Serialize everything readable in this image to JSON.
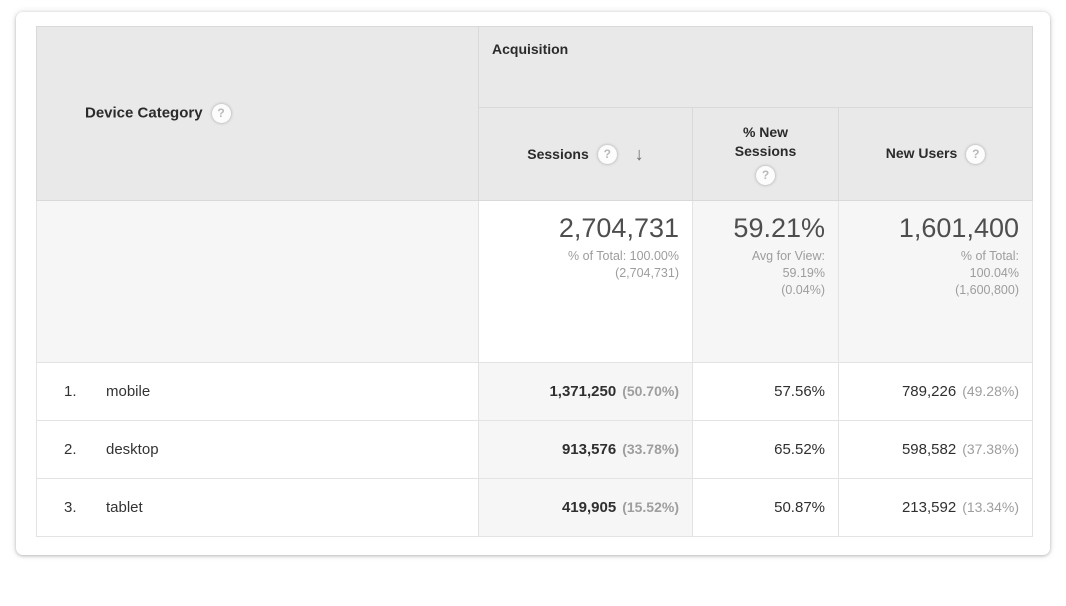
{
  "icons": {
    "help": "?",
    "sort_desc": "↓"
  },
  "colors": {
    "header_bg": "#e9e9e9",
    "shaded_cell": "#f6f6f6",
    "value_text": "#333333",
    "muted_text": "#9d9d9d"
  },
  "table": {
    "dimension_header": {
      "label": "Device Category"
    },
    "group_header": {
      "label": "Acquisition"
    },
    "columns": {
      "sessions": {
        "label": "Sessions",
        "sorted": "descending"
      },
      "pct_new_sessions": {
        "label": "% New Sessions"
      },
      "new_users": {
        "label": "New Users"
      }
    },
    "summary": {
      "sessions": {
        "value": "2,704,731",
        "lines": [
          "% of Total: 100.00%",
          "(2,704,731)"
        ]
      },
      "pct_new_sessions": {
        "value": "59.21%",
        "lines": [
          "Avg for View:",
          "59.19%",
          "(0.04%)"
        ]
      },
      "new_users": {
        "value": "1,601,400",
        "lines": [
          "% of Total:",
          "100.04%",
          "(1,600,800)"
        ]
      }
    },
    "rows": [
      {
        "rank": "1.",
        "device": "mobile",
        "sessions": "1,371,250",
        "sessions_pct": "(50.70%)",
        "pct_new_sessions": "57.56%",
        "new_users": "789,226",
        "new_users_pct": "(49.28%)"
      },
      {
        "rank": "2.",
        "device": "desktop",
        "sessions": "913,576",
        "sessions_pct": "(33.78%)",
        "pct_new_sessions": "65.52%",
        "new_users": "598,582",
        "new_users_pct": "(37.38%)"
      },
      {
        "rank": "3.",
        "device": "tablet",
        "sessions": "419,905",
        "sessions_pct": "(15.52%)",
        "pct_new_sessions": "50.87%",
        "new_users": "213,592",
        "new_users_pct": "(13.34%)"
      }
    ]
  }
}
